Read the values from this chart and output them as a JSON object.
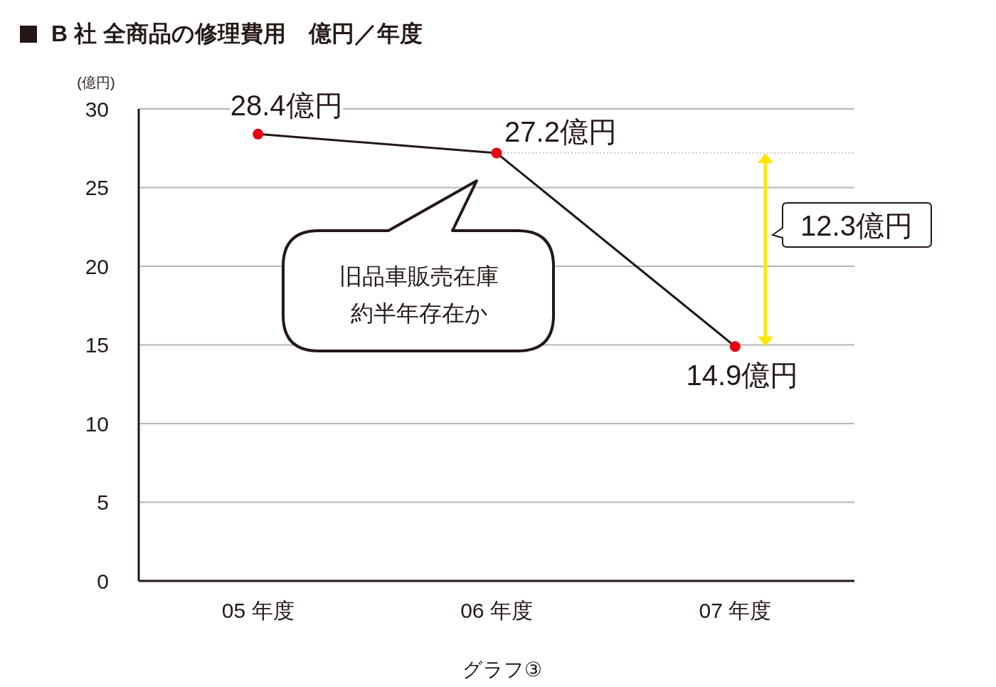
{
  "chart_data": {
    "type": "line",
    "title": "B 社 全商品の修理費用　億円／年度",
    "ylabel": "(億円)",
    "categories": [
      "05 年度",
      "06 年度",
      "07 年度"
    ],
    "series": [
      {
        "color": "#231815",
        "colors": [
          "#e60012",
          "#e60012",
          "#e60012"
        ],
        "values": [
          28.4,
          27.2,
          14.9
        ],
        "value_labels": [
          "28.4億円",
          "27.2億円",
          "14.9億円"
        ]
      }
    ],
    "ylim": [
      0,
      30
    ],
    "yticks": [
      0,
      5,
      10,
      15,
      20,
      25,
      30
    ],
    "grid": "y",
    "marker": "circle",
    "line_style": "solid",
    "ref_lines": [
      {
        "axis": "y",
        "value": 27.2,
        "color": "#999999",
        "line_style": "dotted"
      }
    ],
    "annotations": [
      "旧品車販売在庫",
      "約半年存在か",
      "12.3億円",
      "グラフ③"
    ]
  }
}
